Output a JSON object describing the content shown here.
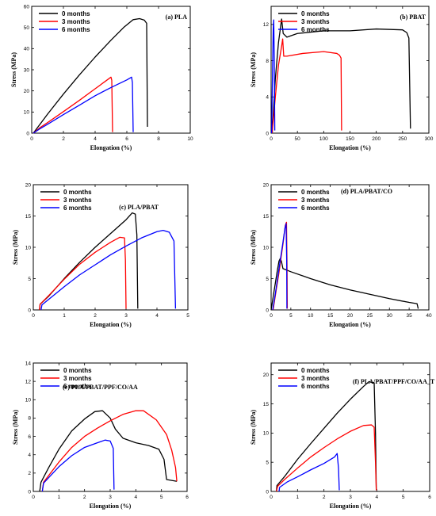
{
  "chart_data": [
    {
      "type": "line",
      "panel_label": "(a) PLA",
      "xlabel": "Elongation (%)",
      "ylabel": "Stress (MPa)",
      "xlim": [
        0,
        10
      ],
      "ylim": [
        0,
        60
      ],
      "xticks": [
        "0",
        "2",
        "4",
        "6",
        "8",
        "10"
      ],
      "yticks": [
        "0",
        "10",
        "20",
        "30",
        "40",
        "50",
        "60"
      ],
      "legend_position": "top-left",
      "series": [
        {
          "name": "0 months",
          "color": "#000000",
          "points": [
            [
              0.1,
              0
            ],
            [
              0.5,
              4
            ],
            [
              1,
              9
            ],
            [
              2,
              18.5
            ],
            [
              3,
              27.5
            ],
            [
              4,
              36
            ],
            [
              5,
              44
            ],
            [
              5.8,
              50
            ],
            [
              6.4,
              53.7
            ],
            [
              6.8,
              54.2
            ],
            [
              7.1,
              53.5
            ],
            [
              7.25,
              52
            ],
            [
              7.3,
              3
            ]
          ]
        },
        {
          "name": "3 months",
          "color": "#ff0000",
          "points": [
            [
              0.1,
              0
            ],
            [
              0.5,
              2.5
            ],
            [
              1,
              5
            ],
            [
              2,
              10.2
            ],
            [
              3,
              15.5
            ],
            [
              4,
              21
            ],
            [
              4.6,
              24.3
            ],
            [
              5,
              26.5
            ],
            [
              5.05,
              25
            ],
            [
              5.1,
              0.5
            ]
          ]
        },
        {
          "name": "6 months",
          "color": "#0000ff",
          "points": [
            [
              0.1,
              0
            ],
            [
              0.5,
              2
            ],
            [
              1,
              4.2
            ],
            [
              2,
              8.8
            ],
            [
              3,
              13.2
            ],
            [
              4,
              17.7
            ],
            [
              5,
              21.6
            ],
            [
              6,
              25.2
            ],
            [
              6.3,
              26.5
            ],
            [
              6.35,
              24
            ],
            [
              6.4,
              0.5
            ]
          ]
        }
      ]
    },
    {
      "type": "line",
      "panel_label": "(b) PBAT",
      "xlabel": "Elongation (%)",
      "ylabel": "Stress (MPa)",
      "xlim": [
        0,
        300
      ],
      "ylim": [
        0,
        14
      ],
      "xticks": [
        "0",
        "50",
        "100",
        "150",
        "200",
        "250",
        "300"
      ],
      "yticks": [
        "0",
        "4",
        "8",
        "12"
      ],
      "legend_position": "top-left",
      "series": [
        {
          "name": "0 months",
          "color": "#000000",
          "points": [
            [
              2,
              0
            ],
            [
              8,
              6
            ],
            [
              14,
              10
            ],
            [
              20,
              12.6
            ],
            [
              23,
              11
            ],
            [
              30,
              10.6
            ],
            [
              50,
              11
            ],
            [
              100,
              11.3
            ],
            [
              150,
              11.3
            ],
            [
              200,
              11.5
            ],
            [
              250,
              11.4
            ],
            [
              258,
              11.1
            ],
            [
              262,
              10.5
            ],
            [
              265,
              0.5
            ]
          ]
        },
        {
          "name": "3 months",
          "color": "#ff0000",
          "points": [
            [
              2,
              0
            ],
            [
              8,
              4
            ],
            [
              14,
              7.5
            ],
            [
              20,
              9.6
            ],
            [
              22,
              10.4
            ],
            [
              24,
              8.5
            ],
            [
              30,
              8.5
            ],
            [
              60,
              8.8
            ],
            [
              100,
              9
            ],
            [
              125,
              8.8
            ],
            [
              130,
              8.6
            ],
            [
              133,
              8.3
            ],
            [
              134,
              0.3
            ]
          ]
        },
        {
          "name": "6 months",
          "color": "#0000ff",
          "points": [
            [
              1,
              0
            ],
            [
              2,
              4
            ],
            [
              3,
              8
            ],
            [
              4,
              11.5
            ],
            [
              5,
              12.5
            ],
            [
              6,
              8
            ],
            [
              7,
              0.3
            ]
          ]
        }
      ]
    },
    {
      "type": "line",
      "panel_label": "(c) PLA/PBAT",
      "xlabel": "Elongation (%)",
      "ylabel": "Stress (MPa)",
      "xlim": [
        0,
        5
      ],
      "ylim": [
        0,
        20
      ],
      "xticks": [
        "0",
        "1",
        "2",
        "3",
        "4",
        "5"
      ],
      "yticks": [
        "0",
        "5",
        "10",
        "15",
        "20"
      ],
      "legend_position": "top-left",
      "series": [
        {
          "name": "0 months",
          "color": "#000000",
          "points": [
            [
              0.2,
              0
            ],
            [
              0.22,
              0.9
            ],
            [
              0.5,
              2.2
            ],
            [
              1,
              5
            ],
            [
              1.5,
              7.6
            ],
            [
              2,
              10
            ],
            [
              2.5,
              12.2
            ],
            [
              3,
              14.4
            ],
            [
              3.2,
              15.5
            ],
            [
              3.3,
              15.3
            ],
            [
              3.35,
              12
            ],
            [
              3.38,
              0.2
            ]
          ]
        },
        {
          "name": "3 months",
          "color": "#ff0000",
          "points": [
            [
              0.2,
              0
            ],
            [
              0.22,
              0.9
            ],
            [
              0.5,
              2.3
            ],
            [
              1,
              4.9
            ],
            [
              1.5,
              7.3
            ],
            [
              2,
              9.2
            ],
            [
              2.5,
              10.8
            ],
            [
              2.8,
              11.6
            ],
            [
              2.95,
              11.5
            ],
            [
              2.98,
              8
            ],
            [
              3,
              0.2
            ]
          ]
        },
        {
          "name": "6 months",
          "color": "#0000ff",
          "points": [
            [
              0.25,
              0
            ],
            [
              0.28,
              0.8
            ],
            [
              0.5,
              1.7
            ],
            [
              1,
              3.7
            ],
            [
              1.5,
              5.6
            ],
            [
              2,
              7.2
            ],
            [
              2.5,
              8.8
            ],
            [
              3,
              10.2
            ],
            [
              3.5,
              11.5
            ],
            [
              4,
              12.5
            ],
            [
              4.2,
              12.7
            ],
            [
              4.4,
              12.4
            ],
            [
              4.55,
              11
            ],
            [
              4.6,
              0.2
            ]
          ]
        }
      ]
    },
    {
      "type": "line",
      "panel_label": "(d) PLA/PBAT/CO",
      "xlabel": "Elongation (%)",
      "ylabel": "Stress (MPa)",
      "xlim": [
        0,
        40
      ],
      "ylim": [
        0,
        20
      ],
      "xticks": [
        "0",
        "5",
        "10",
        "15",
        "20",
        "25",
        "30",
        "35",
        "40"
      ],
      "yticks": [
        "0",
        "5",
        "10",
        "15",
        "20"
      ],
      "legend_position": "top-left",
      "series": [
        {
          "name": "0 months",
          "color": "#000000",
          "points": [
            [
              0,
              0
            ],
            [
              0.5,
              2
            ],
            [
              1,
              4
            ],
            [
              1.5,
              6
            ],
            [
              2,
              7.8
            ],
            [
              2.3,
              8.2
            ],
            [
              2.6,
              7.8
            ],
            [
              3,
              6.6
            ],
            [
              5,
              6.1
            ],
            [
              10,
              5
            ],
            [
              15,
              4
            ],
            [
              20,
              3.2
            ],
            [
              25,
              2.5
            ],
            [
              30,
              1.8
            ],
            [
              35,
              1.2
            ],
            [
              37,
              1
            ],
            [
              37.3,
              0.2
            ]
          ]
        },
        {
          "name": "3 months",
          "color": "#ff0000",
          "points": [
            [
              0.5,
              0
            ],
            [
              1,
              2
            ],
            [
              2,
              6
            ],
            [
              3,
              10.5
            ],
            [
              3.6,
              13.5
            ],
            [
              3.9,
              14
            ],
            [
              4.05,
              6
            ],
            [
              4.1,
              0.2
            ]
          ]
        },
        {
          "name": "6 months",
          "color": "#0000ff",
          "points": [
            [
              0.4,
              0
            ],
            [
              1,
              2.3
            ],
            [
              2,
              6.6
            ],
            [
              3,
              10.8
            ],
            [
              3.5,
              13
            ],
            [
              3.8,
              13.8
            ],
            [
              3.95,
              8
            ],
            [
              4,
              0.2
            ]
          ]
        }
      ]
    },
    {
      "type": "line",
      "panel_label": "(e) PLA/PBAT/PPF/CO/AA",
      "xlabel": "Elongation (%)",
      "ylabel": "Stress (MPa)",
      "xlim": [
        0,
        6
      ],
      "ylim": [
        0,
        14
      ],
      "xticks": [
        "0",
        "1",
        "2",
        "3",
        "4",
        "5",
        "6"
      ],
      "yticks": [
        "0",
        "2",
        "4",
        "6",
        "8",
        "10",
        "12",
        "14"
      ],
      "legend_position": "top-left",
      "series": [
        {
          "name": "0 months",
          "color": "#000000",
          "points": [
            [
              0.25,
              0
            ],
            [
              0.3,
              1
            ],
            [
              0.6,
              2.6
            ],
            [
              1,
              4.6
            ],
            [
              1.5,
              6.6
            ],
            [
              2,
              7.9
            ],
            [
              2.4,
              8.7
            ],
            [
              2.7,
              8.8
            ],
            [
              3,
              8
            ],
            [
              3.2,
              6.8
            ],
            [
              3.5,
              5.8
            ],
            [
              4,
              5.3
            ],
            [
              4.5,
              5
            ],
            [
              4.9,
              4.6
            ],
            [
              5.1,
              3.5
            ],
            [
              5.2,
              1.3
            ],
            [
              5.4,
              1.2
            ],
            [
              5.6,
              1.1
            ]
          ]
        },
        {
          "name": "3 months",
          "color": "#ff0000",
          "points": [
            [
              0.35,
              0
            ],
            [
              0.4,
              1
            ],
            [
              1,
              3.2
            ],
            [
              1.5,
              4.8
            ],
            [
              2,
              6
            ],
            [
              2.5,
              6.9
            ],
            [
              3,
              7.7
            ],
            [
              3.5,
              8.4
            ],
            [
              4,
              8.8
            ],
            [
              4.3,
              8.8
            ],
            [
              4.8,
              7.8
            ],
            [
              5.2,
              6.2
            ],
            [
              5.4,
              4.5
            ],
            [
              5.55,
              2.6
            ],
            [
              5.6,
              1.1
            ]
          ]
        },
        {
          "name": "6 months",
          "color": "#0000ff",
          "points": [
            [
              0.35,
              0
            ],
            [
              0.4,
              0.9
            ],
            [
              1,
              2.7
            ],
            [
              1.5,
              3.9
            ],
            [
              2,
              4.8
            ],
            [
              2.5,
              5.3
            ],
            [
              2.8,
              5.6
            ],
            [
              3,
              5.5
            ],
            [
              3.12,
              4.7
            ],
            [
              3.15,
              0.2
            ]
          ]
        }
      ]
    },
    {
      "type": "line",
      "panel_label": "(f) PLA/PBAT/PPF/CO/AA_T",
      "xlabel": "Elongation (%)",
      "ylabel": "Stress (MPa)",
      "xlim": [
        0,
        6
      ],
      "ylim": [
        0,
        22
      ],
      "xticks": [
        "0",
        "1",
        "2",
        "3",
        "4",
        "5",
        "6"
      ],
      "yticks": [
        "0",
        "5",
        "10",
        "15",
        "20"
      ],
      "legend_position": "top-left",
      "series": [
        {
          "name": "0 months",
          "color": "#000000",
          "points": [
            [
              0.2,
              0
            ],
            [
              0.22,
              1
            ],
            [
              0.5,
              2.5
            ],
            [
              1,
              5.5
            ],
            [
              1.5,
              8.2
            ],
            [
              2,
              10.8
            ],
            [
              2.5,
              13.4
            ],
            [
              3,
              15.8
            ],
            [
              3.5,
              18
            ],
            [
              3.7,
              18.8
            ],
            [
              3.9,
              18.6
            ],
            [
              3.95,
              10
            ],
            [
              3.98,
              0.2
            ]
          ]
        },
        {
          "name": "3 months",
          "color": "#ff0000",
          "points": [
            [
              0.2,
              0
            ],
            [
              0.25,
              0.9
            ],
            [
              0.5,
              2
            ],
            [
              1,
              4
            ],
            [
              1.5,
              5.9
            ],
            [
              2,
              7.5
            ],
            [
              2.5,
              9
            ],
            [
              3,
              10.3
            ],
            [
              3.5,
              11.3
            ],
            [
              3.8,
              11.4
            ],
            [
              3.9,
              11
            ],
            [
              3.95,
              5
            ],
            [
              3.98,
              0.2
            ]
          ]
        },
        {
          "name": "6 months",
          "color": "#0000ff",
          "points": [
            [
              0.3,
              0
            ],
            [
              0.32,
              0.7
            ],
            [
              0.6,
              1.6
            ],
            [
              1,
              2.5
            ],
            [
              1.5,
              3.7
            ],
            [
              2,
              4.8
            ],
            [
              2.4,
              5.9
            ],
            [
              2.5,
              6.5
            ],
            [
              2.55,
              4
            ],
            [
              2.58,
              0.2
            ]
          ]
        }
      ]
    }
  ]
}
